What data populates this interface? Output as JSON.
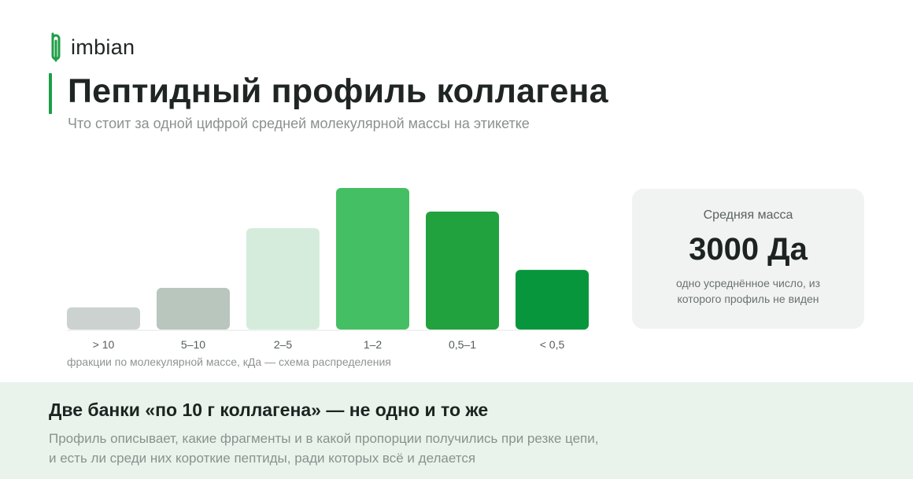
{
  "brand": {
    "name": "imbian",
    "icon": "imbian-logo-icon",
    "color": "#1e9e45"
  },
  "header": {
    "title": "Пептидный профиль коллагена",
    "subtitle": "Что стоит за одной цифрой средней молекулярной массы на этикетке"
  },
  "chart_data": {
    "type": "bar",
    "categories": [
      "> 10",
      "5–10",
      "2–5",
      "1–2",
      "0,5–1",
      "< 0,5"
    ],
    "values": [
      16,
      30,
      73,
      102,
      85,
      43
    ],
    "ylim": [
      0,
      102
    ],
    "colors": [
      "#ccd2cf",
      "#b8c6be",
      "#d5ecdc",
      "#45bf63",
      "#21a23f",
      "#08963c"
    ],
    "note": "фракции по молекулярной массе, кДа — схема распределения",
    "grid": false,
    "legend": "none"
  },
  "avg_card": {
    "label": "Средняя масса",
    "value": "3000 Да",
    "desc_line1": "одно усреднённое число, из",
    "desc_line2": "которого профиль не виден"
  },
  "bottom": {
    "title": "Две банки «по 10 г коллагена» — не одно и то же",
    "line1": "Профиль описывает, какие фрагменты и в какой пропорции получились при резке цепи,",
    "line2": "и есть ли среди них короткие пептиды, ради которых всё и делается"
  }
}
